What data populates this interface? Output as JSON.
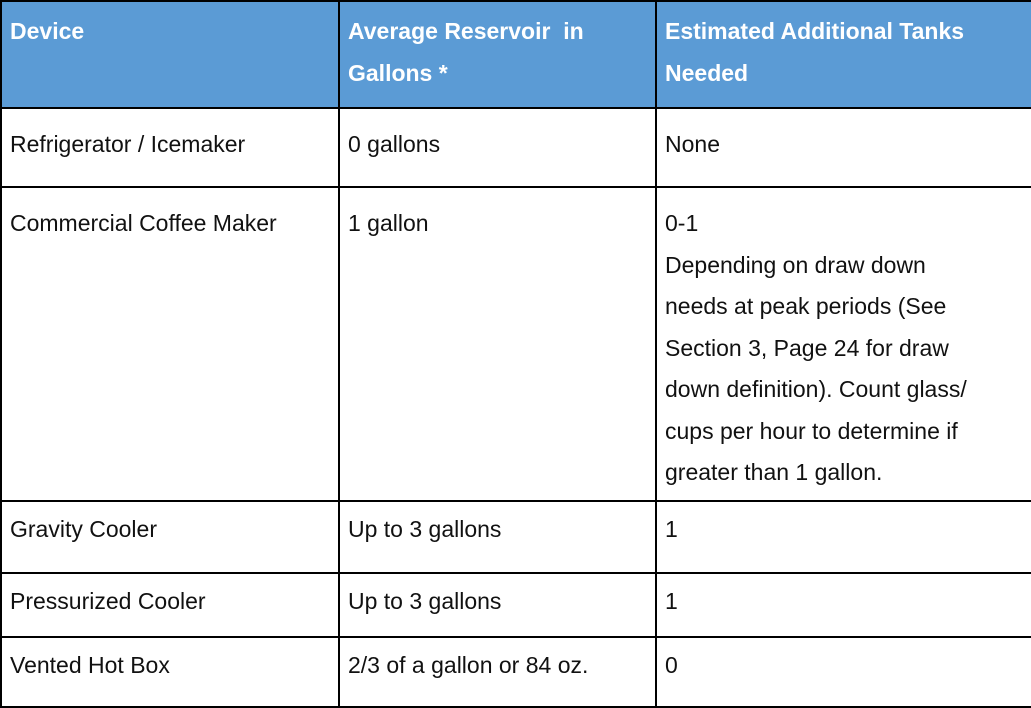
{
  "table": {
    "headers": {
      "device": "Device",
      "reservoir_line1": "Average Reservoir  in",
      "reservoir_line2": "Gallons *",
      "tanks_line1": "Estimated Additional Tanks",
      "tanks_line2": "Needed"
    },
    "rows": [
      {
        "device": "Refrigerator / Icemaker",
        "reservoir": "0 gallons",
        "tanks_lines": [
          "None"
        ]
      },
      {
        "device": "Commercial Coffee Maker",
        "reservoir": "1 gallon",
        "tanks_lines": [
          "0-1",
          "Depending on draw down",
          "needs at peak periods (See",
          "Section 3, Page 24 for draw",
          "down definition). Count glass/",
          "cups per hour to determine if",
          "greater than 1 gallon."
        ]
      },
      {
        "device": "Gravity Cooler",
        "reservoir": "Up to 3 gallons",
        "tanks_lines": [
          "1"
        ]
      },
      {
        "device": "Pressurized Cooler",
        "reservoir": "Up to 3 gallons",
        "tanks_lines": [
          "1"
        ]
      },
      {
        "device": "Vented Hot Box",
        "reservoir": "2/3 of a gallon or 84 oz.",
        "tanks_lines": [
          "0"
        ]
      }
    ]
  }
}
